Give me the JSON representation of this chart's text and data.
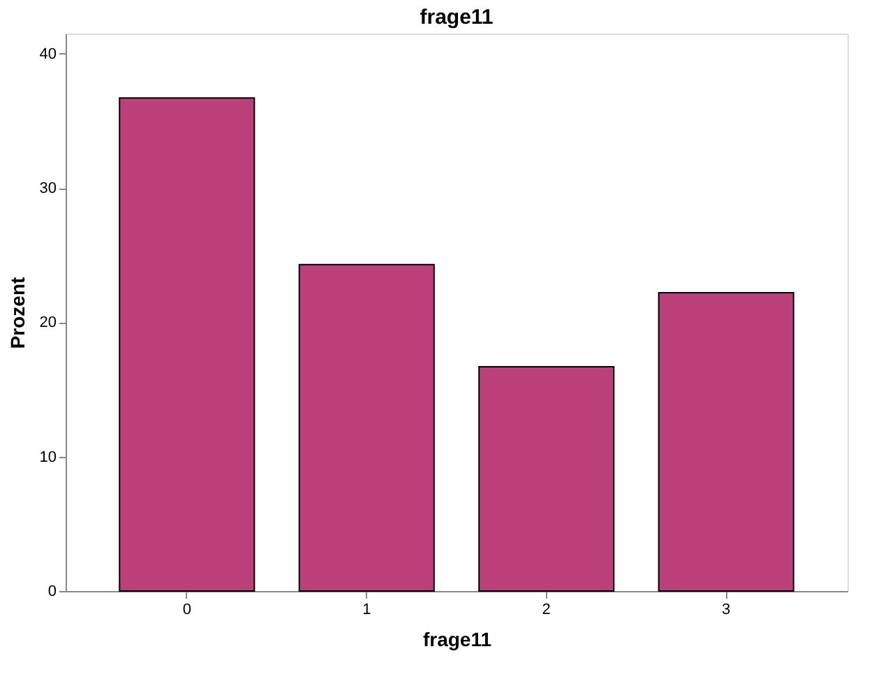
{
  "chart_data": {
    "type": "bar",
    "title": "frage11",
    "xlabel": "frage11",
    "ylabel": "Prozent",
    "categories": [
      "0",
      "1",
      "2",
      "3"
    ],
    "values": [
      36.7,
      24.3,
      16.7,
      22.2
    ],
    "color": "#bc417b",
    "ylim": [
      0,
      41.5
    ],
    "yticks": [
      0,
      10,
      20,
      30,
      40
    ],
    "grid": false
  }
}
